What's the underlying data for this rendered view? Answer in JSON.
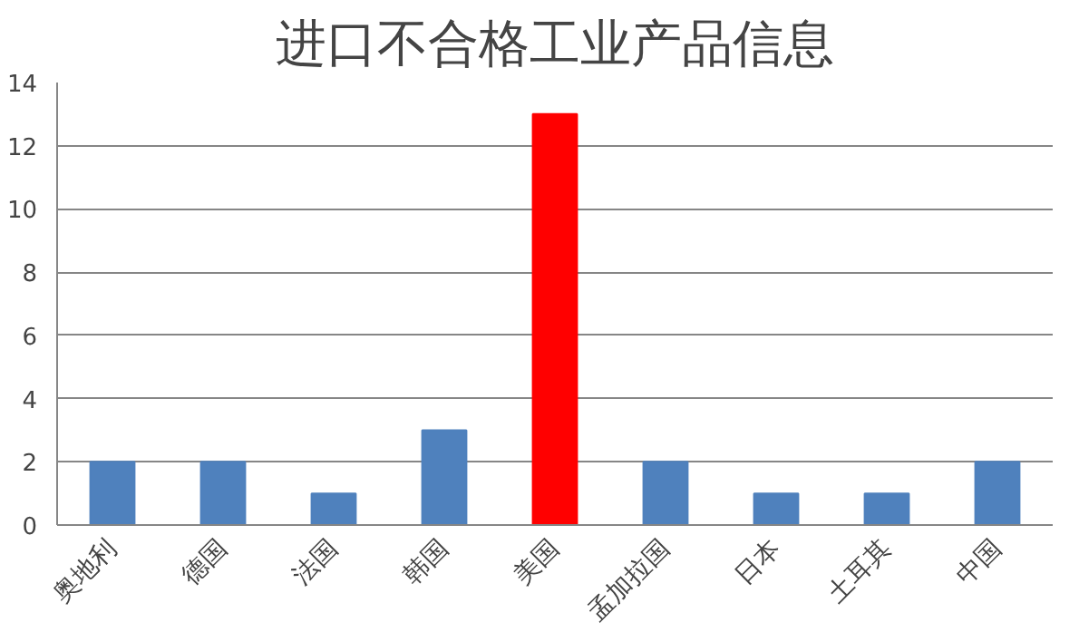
{
  "chart_data": {
    "type": "bar",
    "title": "进口不合格工业产品信息",
    "categories": [
      "奥地利",
      "德国",
      "法国",
      "韩国",
      "美国",
      "孟加拉国",
      "日本",
      "土耳其",
      "中国"
    ],
    "values": [
      2,
      2,
      1,
      3,
      13,
      2,
      1,
      1,
      2
    ],
    "colors": [
      "#4f81bd",
      "#4f81bd",
      "#4f81bd",
      "#4f81bd",
      "#ff0000",
      "#4f81bd",
      "#4f81bd",
      "#4f81bd",
      "#4f81bd"
    ],
    "ylim": [
      0,
      14
    ],
    "yticks": [
      0,
      2,
      4,
      6,
      8,
      10,
      12,
      14
    ],
    "grid": "y"
  }
}
